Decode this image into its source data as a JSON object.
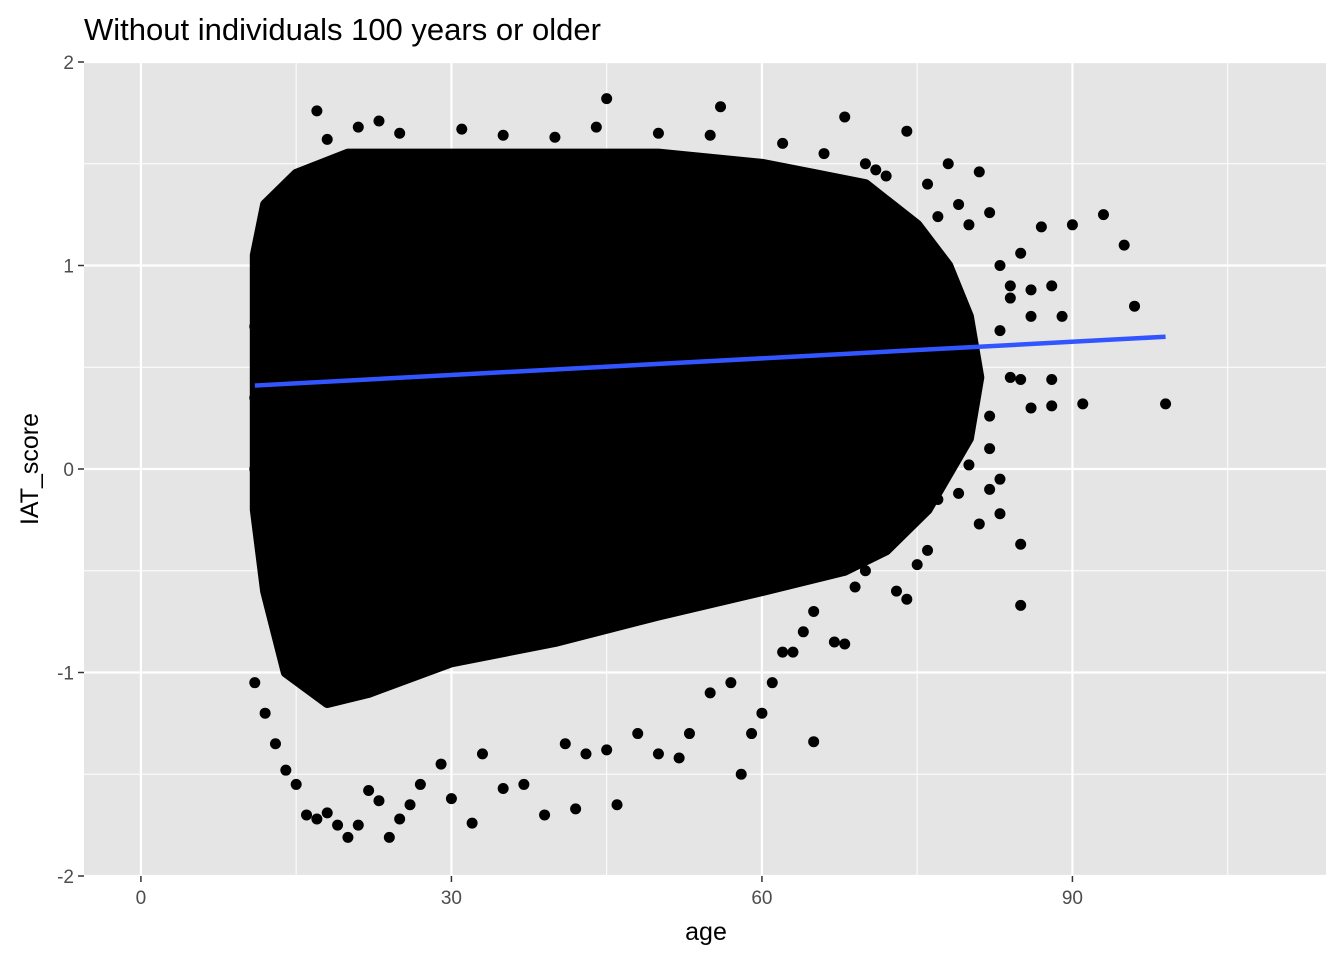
{
  "chart_data": {
    "type": "scatter",
    "title": "Without individuals 100 years or older",
    "xlabel": "age",
    "ylabel": "IAT_score",
    "xlim": [
      -5.5,
      114.5
    ],
    "ylim": [
      -2,
      2
    ],
    "x_ticks": [
      0,
      30,
      60,
      90
    ],
    "y_ticks": [
      -2,
      -1,
      0,
      1,
      2
    ],
    "x_tick_labels": [
      "0",
      "30",
      "60",
      "90"
    ],
    "y_tick_labels": [
      "-2",
      "-1",
      "0",
      "1",
      "2"
    ],
    "grid": true,
    "legend": "none",
    "colors": {
      "panel": "#e5e5e5",
      "grid": "#ffffff",
      "point": "#000000",
      "trend": "#3355ff",
      "tick_text": "#4d4d4d"
    },
    "dense_region": {
      "description_points": [
        [
          11,
          1.05
        ],
        [
          12,
          1.3
        ],
        [
          15,
          1.45
        ],
        [
          20,
          1.55
        ],
        [
          30,
          1.55
        ],
        [
          40,
          1.55
        ],
        [
          50,
          1.55
        ],
        [
          60,
          1.5
        ],
        [
          65,
          1.45
        ],
        [
          70,
          1.4
        ],
        [
          75,
          1.2
        ],
        [
          78,
          1.0
        ],
        [
          80,
          0.75
        ],
        [
          81,
          0.45
        ],
        [
          80,
          0.15
        ],
        [
          76,
          -0.2
        ],
        [
          72,
          -0.4
        ],
        [
          68,
          -0.5
        ],
        [
          60,
          -0.6
        ],
        [
          50,
          -0.72
        ],
        [
          40,
          -0.85
        ],
        [
          30,
          -0.95
        ],
        [
          22,
          -1.1
        ],
        [
          18,
          -1.15
        ],
        [
          14,
          -1.0
        ],
        [
          12,
          -0.6
        ],
        [
          11,
          -0.2
        ],
        [
          11,
          0.5
        ]
      ]
    },
    "series": [
      {
        "name": "",
        "points": [
          [
            17,
            1.76
          ],
          [
            21,
            1.68
          ],
          [
            23,
            1.71
          ],
          [
            45,
            1.82
          ],
          [
            56,
            1.78
          ],
          [
            68,
            1.73
          ],
          [
            74,
            1.66
          ],
          [
            18,
            1.62
          ],
          [
            25,
            1.65
          ],
          [
            31,
            1.67
          ],
          [
            35,
            1.64
          ],
          [
            40,
            1.63
          ],
          [
            44,
            1.68
          ],
          [
            50,
            1.65
          ],
          [
            55,
            1.64
          ],
          [
            62,
            1.6
          ],
          [
            66,
            1.55
          ],
          [
            70,
            1.5
          ],
          [
            71,
            1.47
          ],
          [
            72,
            1.44
          ],
          [
            76,
            1.4
          ],
          [
            78,
            1.5
          ],
          [
            79,
            1.3
          ],
          [
            80,
            1.2
          ],
          [
            81,
            1.46
          ],
          [
            82,
            1.26
          ],
          [
            77,
            1.24
          ],
          [
            83,
            1.0
          ],
          [
            84,
            0.9
          ],
          [
            85,
            1.06
          ],
          [
            86,
            0.88
          ],
          [
            87,
            1.19
          ],
          [
            88,
            0.9
          ],
          [
            89,
            0.75
          ],
          [
            90,
            1.2
          ],
          [
            93,
            1.25
          ],
          [
            95,
            1.1
          ],
          [
            96,
            0.8
          ],
          [
            86,
            0.75
          ],
          [
            84,
            0.84
          ],
          [
            83,
            0.68
          ],
          [
            84,
            0.45
          ],
          [
            85,
            0.44
          ],
          [
            86,
            0.3
          ],
          [
            88,
            0.44
          ],
          [
            88,
            0.31
          ],
          [
            91,
            0.32
          ],
          [
            99,
            0.32
          ],
          [
            82,
            0.26
          ],
          [
            82,
            0.1
          ],
          [
            83,
            -0.05
          ],
          [
            82,
            -0.1
          ],
          [
            81,
            -0.27
          ],
          [
            83,
            -0.22
          ],
          [
            85,
            -0.37
          ],
          [
            85,
            -0.67
          ],
          [
            80,
            0.02
          ],
          [
            79,
            -0.12
          ],
          [
            78,
            0.07
          ],
          [
            77,
            -0.15
          ],
          [
            76,
            -0.4
          ],
          [
            75,
            -0.47
          ],
          [
            74,
            -0.64
          ],
          [
            73,
            -0.6
          ],
          [
            70,
            -0.5
          ],
          [
            69,
            -0.58
          ],
          [
            67,
            -0.85
          ],
          [
            68,
            -0.86
          ],
          [
            65,
            -0.7
          ],
          [
            64,
            -0.8
          ],
          [
            63,
            -0.9
          ],
          [
            65,
            -1.34
          ],
          [
            62,
            -0.9
          ],
          [
            61,
            -1.05
          ],
          [
            60,
            -1.2
          ],
          [
            59,
            -1.3
          ],
          [
            58,
            -1.5
          ],
          [
            57,
            -1.05
          ],
          [
            55,
            -1.1
          ],
          [
            53,
            -1.3
          ],
          [
            52,
            -1.42
          ],
          [
            50,
            -1.4
          ],
          [
            48,
            -1.3
          ],
          [
            46,
            -1.65
          ],
          [
            45,
            -1.38
          ],
          [
            43,
            -1.4
          ],
          [
            42,
            -1.67
          ],
          [
            41,
            -1.35
          ],
          [
            39,
            -1.7
          ],
          [
            37,
            -1.55
          ],
          [
            35,
            -1.57
          ],
          [
            33,
            -1.4
          ],
          [
            32,
            -1.74
          ],
          [
            30,
            -1.62
          ],
          [
            29,
            -1.45
          ],
          [
            27,
            -1.55
          ],
          [
            26,
            -1.65
          ],
          [
            25,
            -1.72
          ],
          [
            24,
            -1.81
          ],
          [
            23,
            -1.63
          ],
          [
            22,
            -1.58
          ],
          [
            21,
            -1.75
          ],
          [
            20,
            -1.81
          ],
          [
            19,
            -1.75
          ],
          [
            18,
            -1.69
          ],
          [
            17,
            -1.72
          ],
          [
            16,
            -1.7
          ],
          [
            15,
            -1.55
          ],
          [
            14,
            -1.48
          ],
          [
            13,
            -1.35
          ],
          [
            12,
            -1.2
          ],
          [
            11,
            -1.05
          ],
          [
            12,
            -0.45
          ],
          [
            11,
            0.0
          ],
          [
            11,
            0.35
          ],
          [
            11,
            0.7
          ]
        ]
      }
    ],
    "trend_line": {
      "name": "",
      "x": [
        11,
        99
      ],
      "y": [
        0.41,
        0.65
      ]
    }
  }
}
